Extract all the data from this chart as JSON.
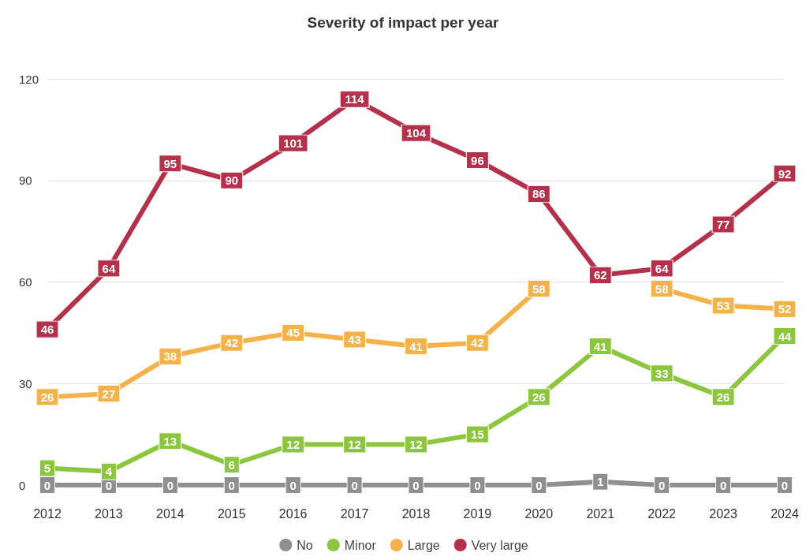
{
  "chart_data": {
    "type": "line",
    "title": "Severity of impact per year",
    "categories": [
      "2012",
      "2013",
      "2014",
      "2015",
      "2016",
      "2017",
      "2018",
      "2019",
      "2020",
      "2021",
      "2022",
      "2023",
      "2024"
    ],
    "series": [
      {
        "name": "No",
        "color": "#8f8f8f",
        "values": [
          0,
          0,
          0,
          0,
          0,
          0,
          0,
          0,
          0,
          1,
          0,
          0,
          0
        ]
      },
      {
        "name": "Minor",
        "color": "#8cc63f",
        "values": [
          5,
          4,
          13,
          6,
          12,
          12,
          12,
          15,
          26,
          41,
          33,
          26,
          44
        ]
      },
      {
        "name": "Large",
        "color": "#f5b24a",
        "values": [
          26,
          27,
          38,
          42,
          45,
          43,
          41,
          42,
          58,
          null,
          58,
          53,
          52
        ]
      },
      {
        "name": "Very large",
        "color": "#b5304a",
        "values": [
          46,
          64,
          95,
          90,
          101,
          114,
          104,
          96,
          86,
          62,
          64,
          77,
          92
        ]
      }
    ],
    "ylim": [
      0,
      120
    ],
    "yticks": [
      0,
      30,
      60,
      90,
      120
    ],
    "grid": "y",
    "legend": "bottom",
    "marker": "square",
    "line_style": "solid",
    "data_labels": true
  }
}
